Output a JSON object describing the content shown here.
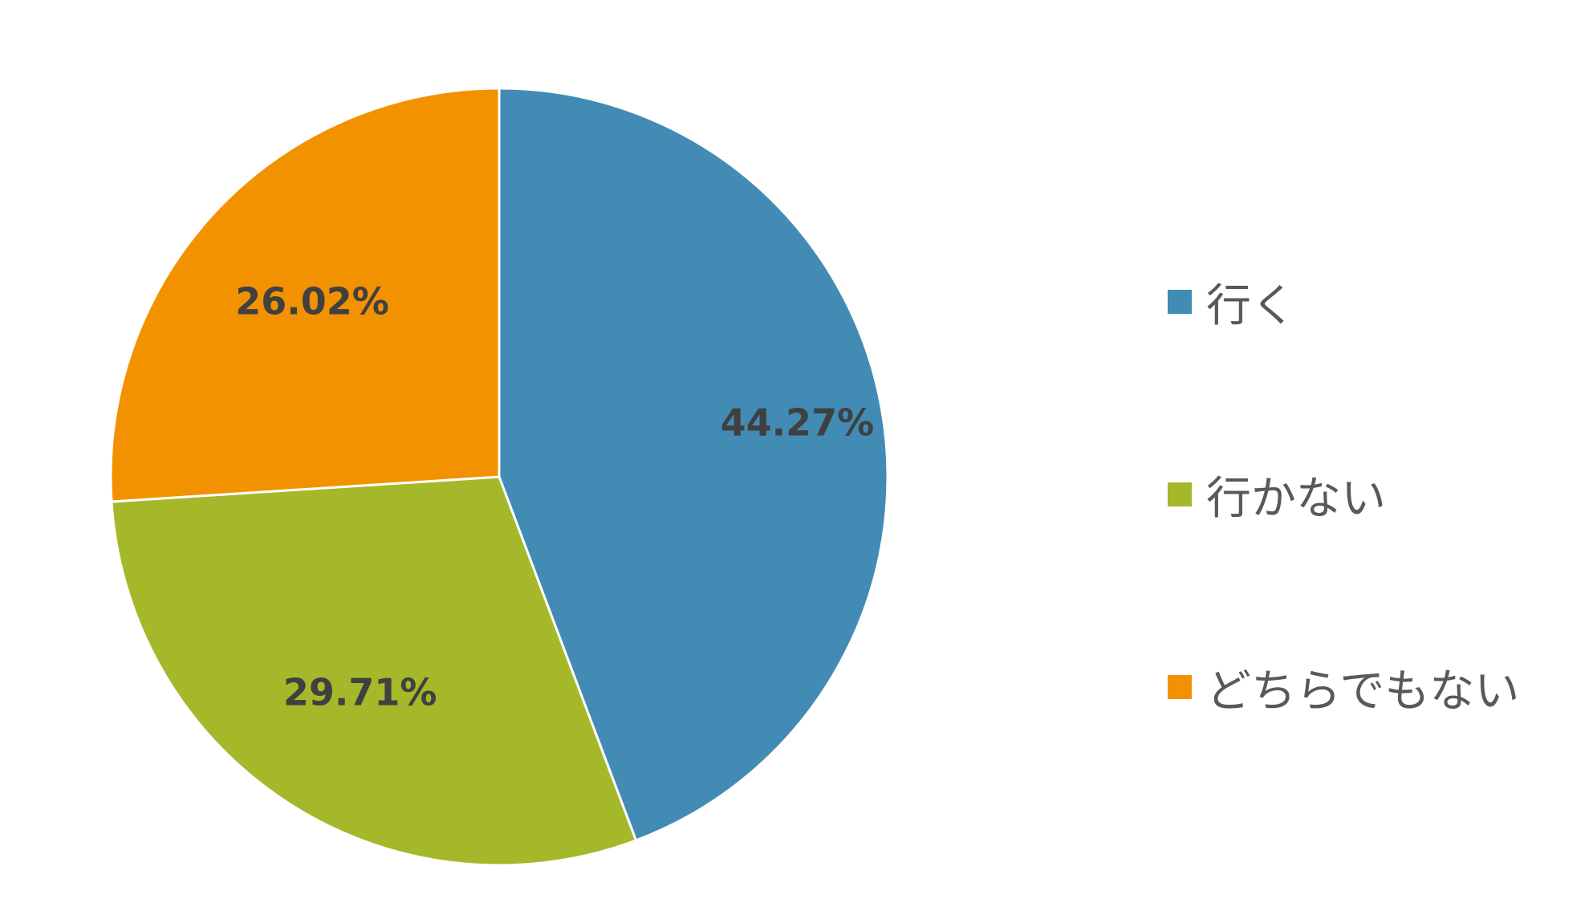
{
  "chart_data": {
    "type": "pie",
    "categories": [
      "行く",
      "行かない",
      "どちらでもない"
    ],
    "values": [
      44.27,
      29.71,
      26.02
    ],
    "data_labels": [
      "44.27%",
      "29.71%",
      "26.02%"
    ],
    "colors": [
      "#428BB4",
      "#A5B82A",
      "#F39200"
    ],
    "legend_position": "right",
    "start_angle": "12 o'clock",
    "direction": "clockwise"
  }
}
